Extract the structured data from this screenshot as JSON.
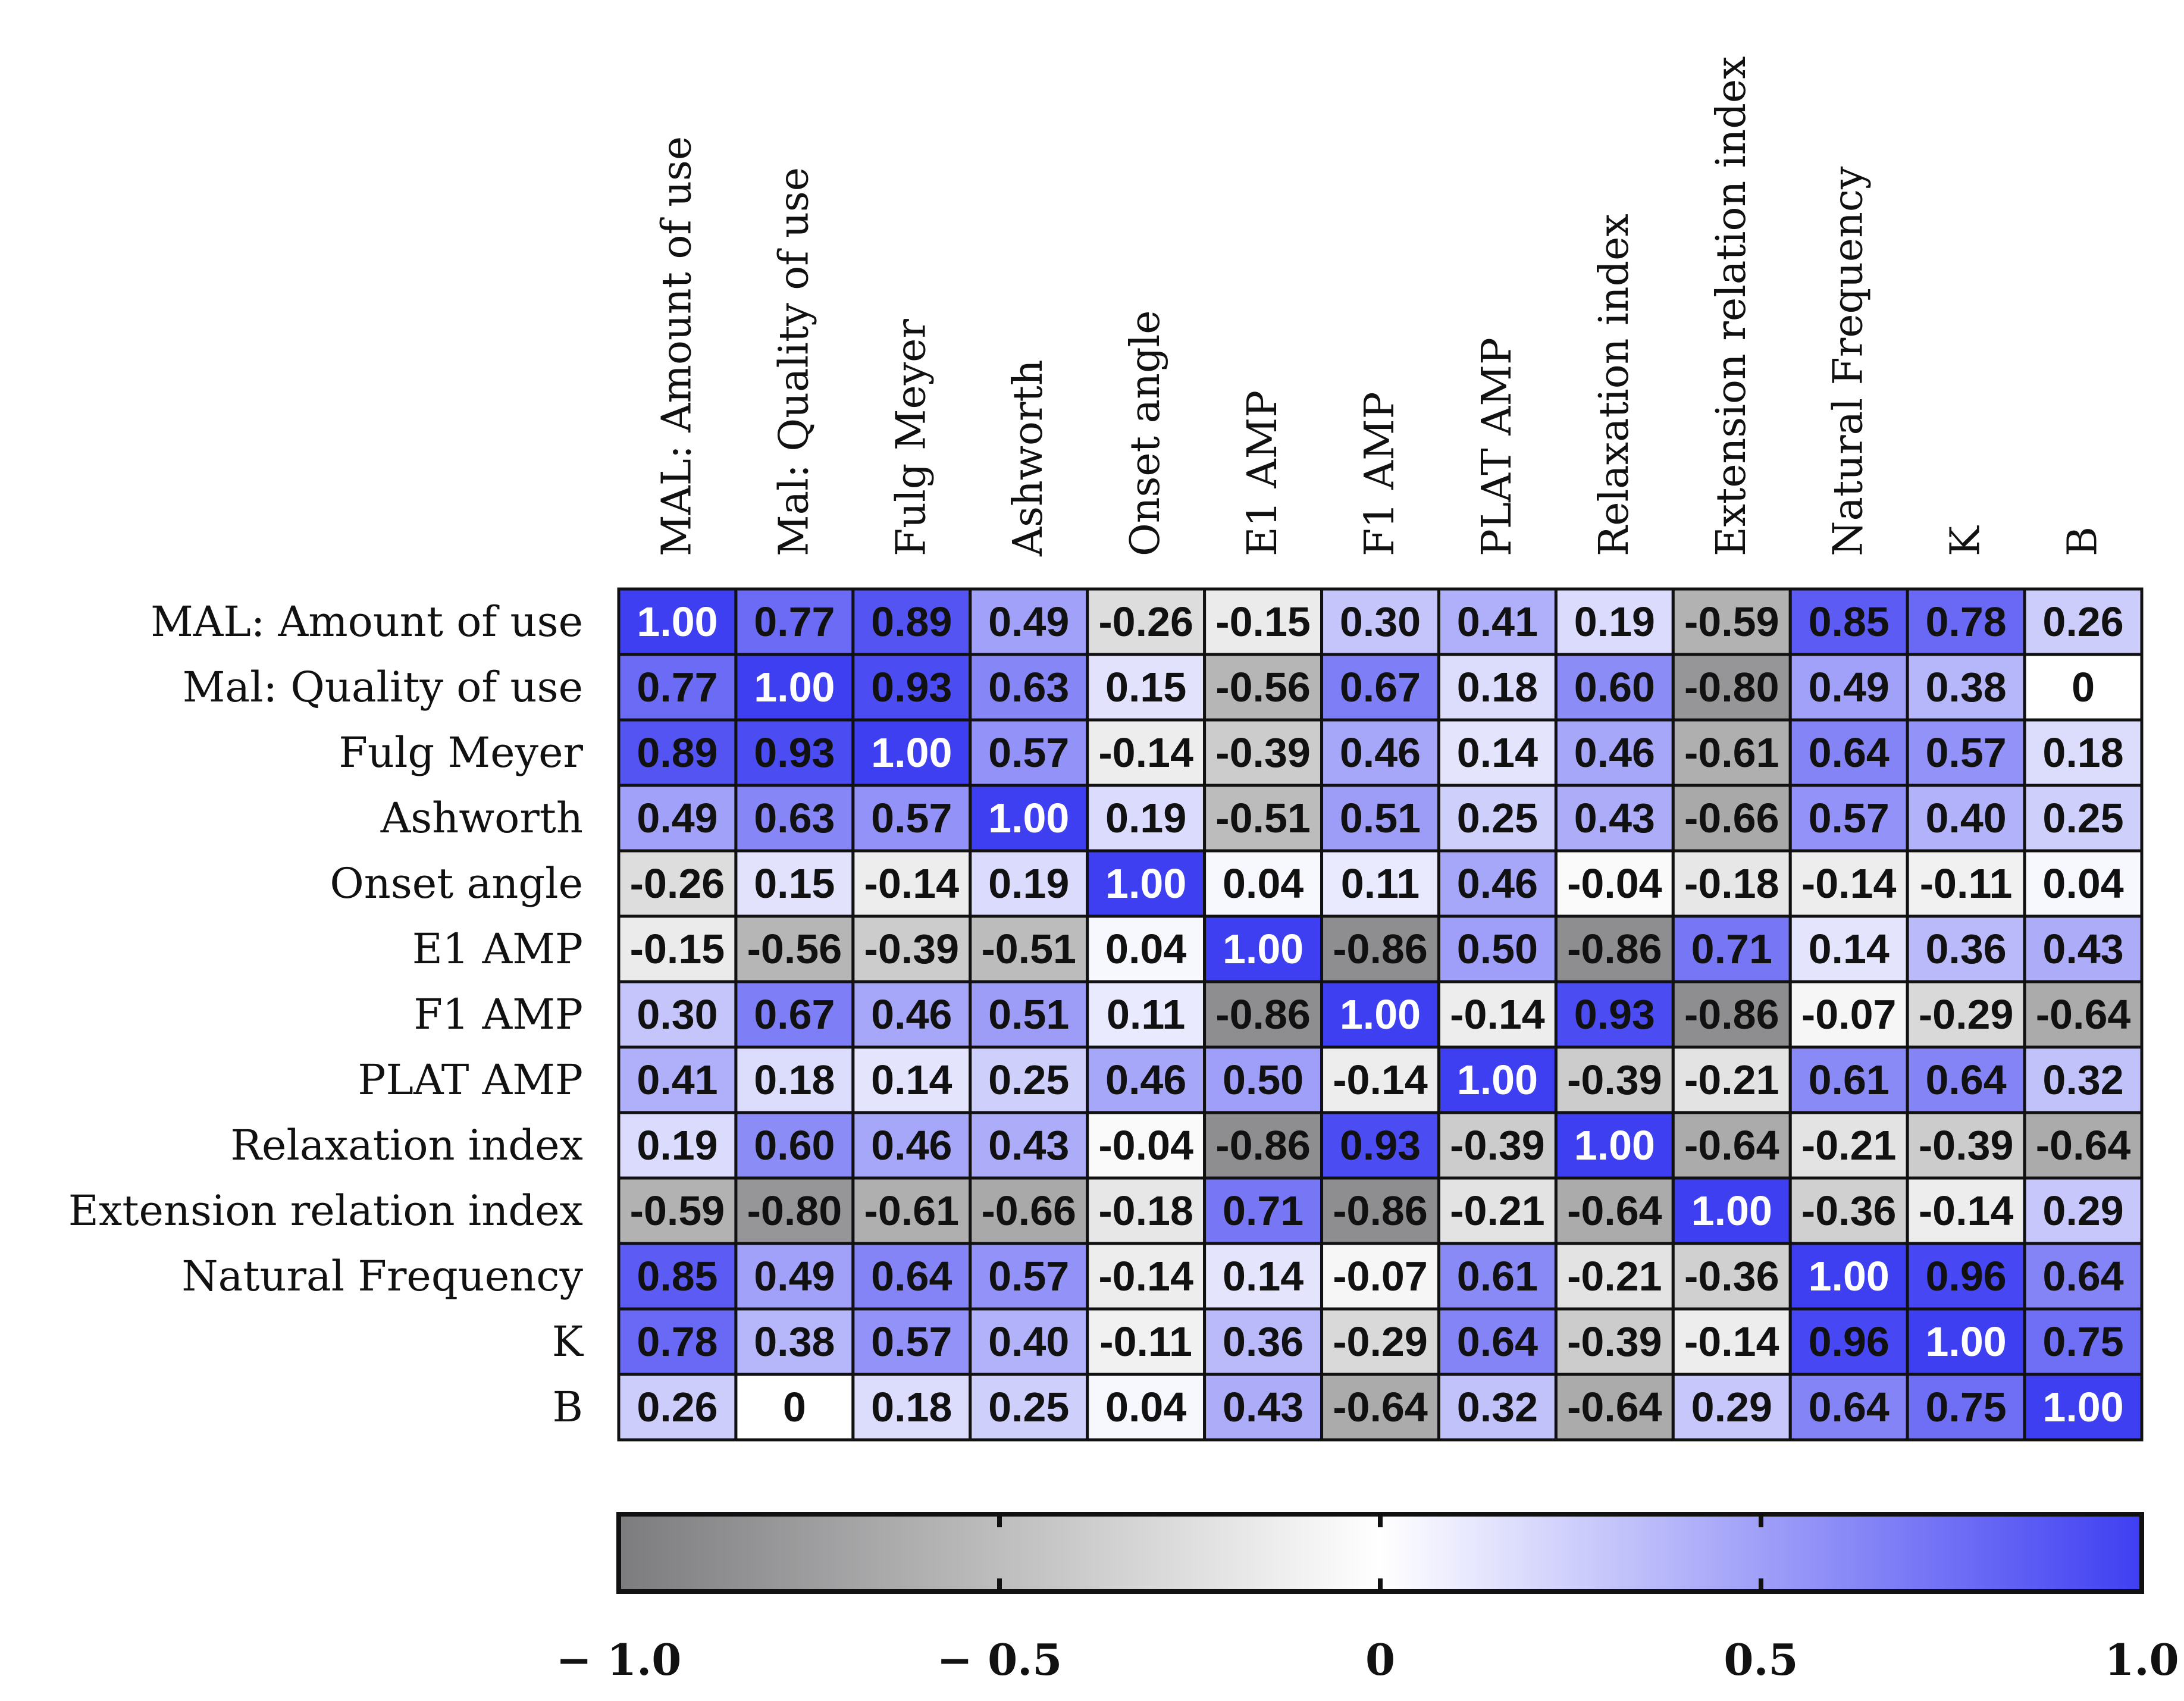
{
  "chart_data": {
    "type": "heatmap",
    "title": "",
    "labels": [
      "MAL: Amount of use",
      "Mal: Quality of use",
      "Fulg Meyer",
      "Ashworth",
      "Onset angle",
      "E1 AMP",
      "F1 AMP",
      "PLAT AMP",
      "Relaxation index",
      "Extension relation index",
      "Natural Frequency",
      "K",
      "B"
    ],
    "values": [
      [
        1.0,
        0.77,
        0.89,
        0.49,
        -0.26,
        -0.15,
        0.3,
        0.41,
        0.19,
        -0.59,
        0.85,
        0.78,
        0.26
      ],
      [
        0.77,
        1.0,
        0.93,
        0.63,
        0.15,
        -0.56,
        0.67,
        0.18,
        0.6,
        -0.8,
        0.49,
        0.38,
        0
      ],
      [
        0.89,
        0.93,
        1.0,
        0.57,
        -0.14,
        -0.39,
        0.46,
        0.14,
        0.46,
        -0.61,
        0.64,
        0.57,
        0.18
      ],
      [
        0.49,
        0.63,
        0.57,
        1.0,
        0.19,
        -0.51,
        0.51,
        0.25,
        0.43,
        -0.66,
        0.57,
        0.4,
        0.25
      ],
      [
        -0.26,
        0.15,
        -0.14,
        0.19,
        1.0,
        0.04,
        0.11,
        0.46,
        -0.04,
        -0.18,
        -0.14,
        -0.11,
        0.04
      ],
      [
        -0.15,
        -0.56,
        -0.39,
        -0.51,
        0.04,
        1.0,
        -0.86,
        0.5,
        -0.86,
        0.71,
        0.14,
        0.36,
        0.43
      ],
      [
        0.3,
        0.67,
        0.46,
        0.51,
        0.11,
        -0.86,
        1.0,
        -0.14,
        0.93,
        -0.86,
        -0.07,
        -0.29,
        -0.64
      ],
      [
        0.41,
        0.18,
        0.14,
        0.25,
        0.46,
        0.5,
        -0.14,
        1.0,
        -0.39,
        -0.21,
        0.61,
        0.64,
        0.32
      ],
      [
        0.19,
        0.6,
        0.46,
        0.43,
        -0.04,
        -0.86,
        0.93,
        -0.39,
        1.0,
        -0.64,
        -0.21,
        -0.39,
        -0.64
      ],
      [
        -0.59,
        -0.8,
        -0.61,
        -0.66,
        -0.18,
        0.71,
        -0.86,
        -0.21,
        -0.64,
        1.0,
        -0.36,
        -0.14,
        0.29
      ],
      [
        0.85,
        0.49,
        0.64,
        0.57,
        -0.14,
        0.14,
        -0.07,
        0.61,
        -0.21,
        -0.36,
        1.0,
        0.96,
        0.64
      ],
      [
        0.78,
        0.38,
        0.57,
        0.4,
        -0.11,
        0.36,
        -0.29,
        0.64,
        -0.39,
        -0.14,
        0.96,
        1.0,
        0.75
      ],
      [
        0.26,
        0,
        0.18,
        0.25,
        0.04,
        0.43,
        -0.64,
        0.32,
        -0.64,
        0.29,
        0.64,
        0.75,
        1.0
      ]
    ],
    "colorbar": {
      "range": [
        -1.0,
        1.0
      ],
      "ticks": [
        -1.0,
        -0.5,
        0,
        0.5,
        1.0
      ],
      "tick_labels": [
        "− 1.0",
        "− 0.5",
        "0",
        "0.5",
        "1.0"
      ],
      "colors": {
        "low": "#7c7c7e",
        "mid": "#ffffff",
        "high": "#3f3ff2"
      }
    }
  }
}
